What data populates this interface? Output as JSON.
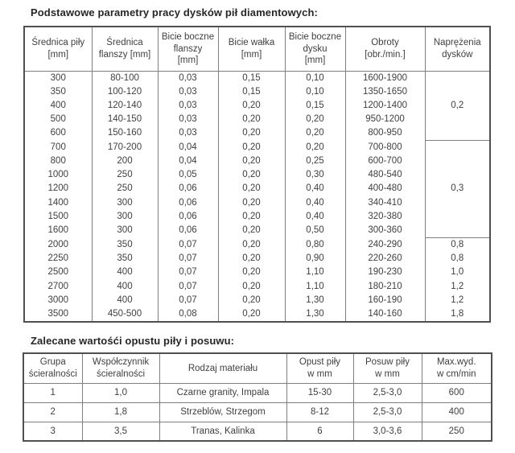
{
  "table1": {
    "title": "Podstawowe parametry pracy dysków pił diamentowych:",
    "headers": [
      "Średnica piły\n[mm]",
      "Średnica\nflanszy [mm]",
      "Bicie boczne\nflanszy\n[mm]",
      "Bicie wałka\n[mm]",
      "Bicie boczne\ndysku\n[mm]",
      "Obroty\n[obr./min.]",
      "Naprężenia\ndysków"
    ],
    "rows": [
      [
        "300",
        "80-100",
        "0,03",
        "0,15",
        "0,10",
        "1600-1900"
      ],
      [
        "350",
        "100-120",
        "0,03",
        "0,15",
        "0,10",
        "1350-1650"
      ],
      [
        "400",
        "120-140",
        "0,03",
        "0,20",
        "0,15",
        "1200-1400"
      ],
      [
        "500",
        "140-150",
        "0,03",
        "0,20",
        "0,20",
        "950-1200"
      ],
      [
        "600",
        "150-160",
        "0,03",
        "0,20",
        "0,20",
        "800-950"
      ],
      [
        "700",
        "170-200",
        "0,04",
        "0,20",
        "0,20",
        "700-800"
      ],
      [
        "800",
        "200",
        "0,04",
        "0,20",
        "0,25",
        "600-700"
      ],
      [
        "1000",
        "250",
        "0,05",
        "0,20",
        "0,30",
        "480-540"
      ],
      [
        "1200",
        "250",
        "0,06",
        "0,20",
        "0,40",
        "400-480"
      ],
      [
        "1400",
        "300",
        "0,06",
        "0,20",
        "0,40",
        "340-410"
      ],
      [
        "1500",
        "300",
        "0,06",
        "0,20",
        "0,40",
        "320-380"
      ],
      [
        "1600",
        "300",
        "0,06",
        "0,20",
        "0,50",
        "300-360"
      ],
      [
        "2000",
        "350",
        "0,07",
        "0,20",
        "0,80",
        "240-290"
      ],
      [
        "2250",
        "350",
        "0,07",
        "0,20",
        "0,90",
        "220-260"
      ],
      [
        "2500",
        "400",
        "0,07",
        "0,20",
        "1,10",
        "190-230"
      ],
      [
        "2700",
        "400",
        "0,07",
        "0,20",
        "1,10",
        "180-210"
      ],
      [
        "3000",
        "400",
        "0,07",
        "0,20",
        "1,30",
        "160-190"
      ],
      [
        "3500",
        "450-500",
        "0,08",
        "0,20",
        "1,30",
        "140-160"
      ]
    ],
    "stress_groups": [
      {
        "span": 5,
        "merged": true,
        "value": "0,2"
      },
      {
        "span": 7,
        "merged": true,
        "value": "0,3"
      },
      {
        "span": 6,
        "merged": false,
        "values": [
          "0,8",
          "0,8",
          "1,0",
          "1,2",
          "1,2",
          "1,8"
        ]
      }
    ]
  },
  "table2": {
    "title": "Zalecane wartośći opustu piły i posuwu:",
    "headers": [
      "Grupa\nścieralności",
      "Współczynnik\nścieralności",
      "Rodzaj materiału",
      "Opust piły\nw mm",
      "Posuw piły\nw mm",
      "Max.wyd.\nw cm/min"
    ],
    "rows": [
      [
        "1",
        "1,0",
        "Czarne granity, Impala",
        "15-30",
        "2,5-3,0",
        "600"
      ],
      [
        "2",
        "1,8",
        "Strzeblów, Strzegom",
        "8-12",
        "2,5-3,0",
        "400"
      ],
      [
        "3",
        "3,5",
        "Tranas, Kalinka",
        "6",
        "3,0-3,6",
        "250"
      ]
    ]
  }
}
